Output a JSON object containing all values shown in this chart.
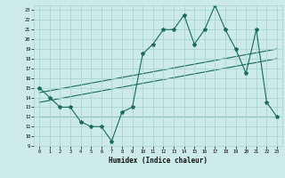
{
  "xlabel": "Humidex (Indice chaleur)",
  "bg_color": "#cceae7",
  "grid_color": "#aad4d0",
  "line_color": "#1a6b5a",
  "xlim": [
    -0.5,
    23.5
  ],
  "ylim": [
    9,
    23.5
  ],
  "xticks": [
    0,
    1,
    2,
    3,
    4,
    5,
    6,
    7,
    8,
    9,
    10,
    11,
    12,
    13,
    14,
    15,
    16,
    17,
    18,
    19,
    20,
    21,
    22,
    23
  ],
  "yticks": [
    9,
    10,
    11,
    12,
    13,
    14,
    15,
    16,
    17,
    18,
    19,
    20,
    21,
    22,
    23
  ],
  "series1_x": [
    0,
    1,
    2,
    3,
    4,
    5,
    6,
    7,
    8,
    9,
    10,
    11,
    12,
    13,
    14,
    15,
    16,
    17,
    18,
    19,
    20,
    21,
    22,
    23
  ],
  "series1_y": [
    15,
    14,
    13,
    13,
    11.5,
    11,
    11,
    9.5,
    12.5,
    13,
    18.5,
    19.5,
    21,
    21,
    22.5,
    19.5,
    21,
    23.5,
    21,
    19,
    16.5,
    21,
    13.5,
    12
  ],
  "series2_x": [
    0,
    23
  ],
  "series2_y": [
    13.5,
    18
  ],
  "series3_x": [
    0,
    23
  ],
  "series3_y": [
    14.5,
    19
  ],
  "series4_x": [
    0,
    23
  ],
  "series4_y": [
    12,
    12
  ]
}
